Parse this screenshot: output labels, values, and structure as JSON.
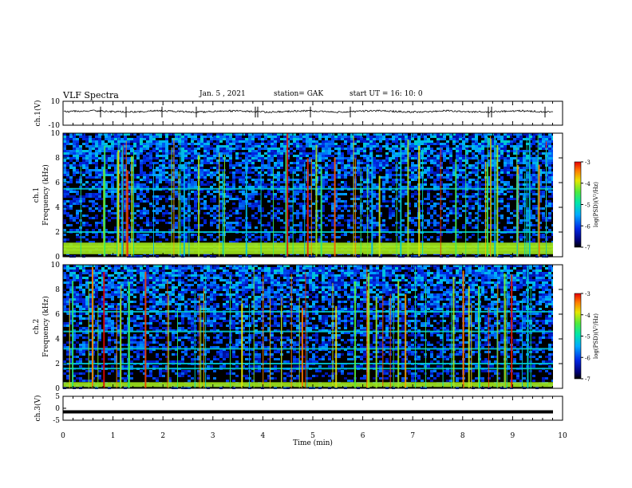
{
  "header": {
    "title": "VLF Spectra",
    "date": "Jan. 5 , 2021",
    "station": "station= GAK",
    "start": "start  UT =   16: 10: 0"
  },
  "colors": {
    "line": "#000000",
    "spectrogram_background": "#000000"
  },
  "chart_data": [
    {
      "type": "line",
      "ylabel": "ch.1(V)",
      "ylim": [
        -10,
        10
      ],
      "yticks": [
        "10",
        "-10"
      ],
      "xlim": [
        0,
        10
      ],
      "description_values": {
        "baseline_V": 1.5,
        "noise_amplitude_V": 1.5
      }
    },
    {
      "type": "heatmap",
      "ylabel_lines": [
        "ch.1",
        "Frequency (kHz)"
      ],
      "ylim": [
        0,
        10
      ],
      "yticks": [
        "0",
        "2",
        "4",
        "6",
        "8",
        "10"
      ],
      "xlim": [
        0,
        10
      ],
      "bands_khz": [
        0.4,
        0.7,
        0.95,
        2.0,
        5.5
      ],
      "colorbar": {
        "label": "log(PSD)(V²/Hz)",
        "range": [
          -7,
          -3
        ],
        "ticks": [
          "-3",
          "-4",
          "-5",
          "-6",
          "-7"
        ]
      }
    },
    {
      "type": "heatmap",
      "ylabel_lines": [
        "ch.2",
        "Frequency (kHz)"
      ],
      "ylim": [
        0,
        10
      ],
      "yticks": [
        "0",
        "2",
        "4",
        "6",
        "8",
        "10"
      ],
      "xlim": [
        0,
        10
      ],
      "bands_khz": [
        0.3,
        1.6,
        2.0,
        3.2,
        4.6,
        6.2
      ],
      "colorbar": {
        "label": "log(PSD)(V²/Hz)",
        "range": [
          -7,
          -3
        ],
        "ticks": [
          "-3",
          "-4",
          "-5",
          "-6",
          "-7"
        ]
      }
    },
    {
      "type": "line",
      "ylabel": "ch.3(V)",
      "ylim": [
        -5,
        5
      ],
      "yticks": [
        "5",
        "0",
        "-5"
      ],
      "xlim": [
        0,
        10
      ],
      "xticks": [
        "0",
        "1",
        "2",
        "3",
        "4",
        "5",
        "6",
        "7",
        "8",
        "9",
        "10"
      ],
      "xlabel": "Time (min)",
      "description_values": {
        "constant_V": -1.5
      }
    }
  ]
}
